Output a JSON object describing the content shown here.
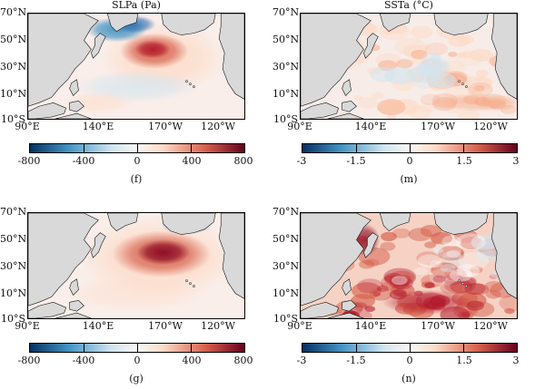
{
  "panels": [
    {
      "id": "f",
      "title": "SLPa (Pa)",
      "letter": "(f)",
      "colorbar_ticks": [
        "-800",
        "-400",
        "0",
        "400",
        "800"
      ],
      "field": "slp1"
    },
    {
      "id": "m",
      "title": "SSTa (°C)",
      "letter": "(m)",
      "colorbar_ticks": [
        "-3",
        "-1.5",
        "0",
        "1.5",
        "3"
      ],
      "field": "sst1"
    },
    {
      "id": "g",
      "title": "",
      "letter": "(g)",
      "colorbar_ticks": [
        "-800",
        "-400",
        "0",
        "400",
        "800"
      ],
      "field": "slp2"
    },
    {
      "id": "n",
      "title": "",
      "letter": "(n)",
      "colorbar_ticks": [
        "-3",
        "-1.5",
        "0",
        "1.5",
        "3"
      ],
      "field": "sst2"
    }
  ],
  "lat_labels": [
    "70°N",
    "50°N",
    "30°N",
    "10°N",
    "10°S"
  ],
  "lon_labels": [
    "90°E",
    "140°E",
    "170°W",
    "120°W"
  ],
  "colors": {
    "land": "#d9d9d9",
    "coast": "#111111",
    "neg_dark": "#053061",
    "neg_mid": "#4393c3",
    "neg_light": "#d1e5f0",
    "zero": "#f7f7f7",
    "pos_light": "#fddbc7",
    "pos_mid": "#d6604d",
    "pos_dark": "#67001f"
  }
}
